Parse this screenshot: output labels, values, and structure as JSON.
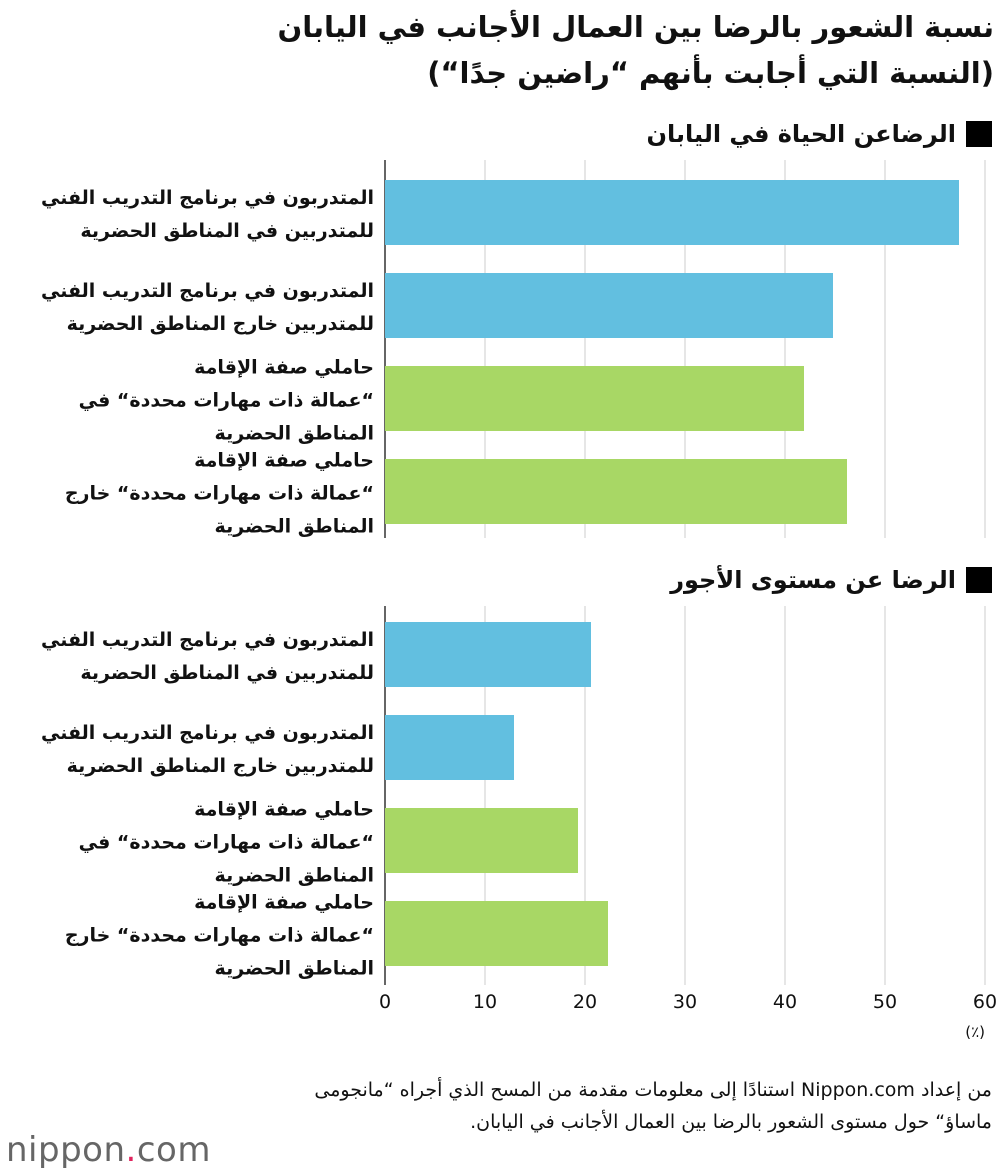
{
  "title_line1": "نسبة الشعور بالرضا بين العمال الأجانب في اليابان",
  "title_line2": "(النسبة التي أجابت بأنهم “راضين جدًا“)",
  "unit_label": "(٪)",
  "source_text": "من إعداد Nippon.com استنادًا إلى معلومات مقدمة من المسح الذي أجراه “مانجومى ماساؤ“ حول مستوى الشعور بالرضا بين العمال الأجانب في اليابان.",
  "logo": {
    "main": "nippon",
    "dot": ".",
    "suffix": "com"
  },
  "colors": {
    "blue": "#62bfe0",
    "green": "#a8d765",
    "grid": "#cccccc",
    "axis": "#333333"
  },
  "chart_data": [
    {
      "type": "bar",
      "orientation": "horizontal",
      "title": "الرضاعن الحياة في اليابان",
      "categories": [
        "المتدربون في برنامج التدريب الفني\nللمتدربين في المناطق الحضرية",
        "المتدربون في برنامج التدريب الفني\nللمتدربين خارج المناطق الحضرية",
        "حاملي صفة الإقامة\n“عمالة ذات مهارات محددة“ في\nالمناطق الحضرية",
        "حاملي صفة الإقامة\n“عمالة ذات مهارات محددة“ خارج\nالمناطق الحضرية"
      ],
      "values": [
        57.4,
        44.8,
        41.9,
        46.2
      ],
      "bar_colors": [
        "blue",
        "blue",
        "green",
        "green"
      ],
      "xlim": [
        0,
        60
      ],
      "grid": true
    },
    {
      "type": "bar",
      "orientation": "horizontal",
      "title": "الرضا عن مستوى الأجور",
      "categories": [
        "المتدربون في برنامج التدريب الفني\nللمتدربين في المناطق الحضرية",
        "المتدربون في برنامج التدريب الفني\nللمتدربين خارج المناطق الحضرية",
        "حاملي صفة الإقامة\n“عمالة ذات مهارات محددة“ في\nالمناطق الحضرية",
        "حاملي صفة الإقامة\n“عمالة ذات مهارات محددة“ خارج\nالمناطق الحضرية"
      ],
      "values": [
        20.6,
        12.9,
        19.3,
        22.3
      ],
      "bar_colors": [
        "blue",
        "blue",
        "green",
        "green"
      ],
      "xlim": [
        0,
        60
      ],
      "xticks": [
        0,
        10,
        20,
        30,
        40,
        50,
        60
      ],
      "grid": true
    }
  ]
}
